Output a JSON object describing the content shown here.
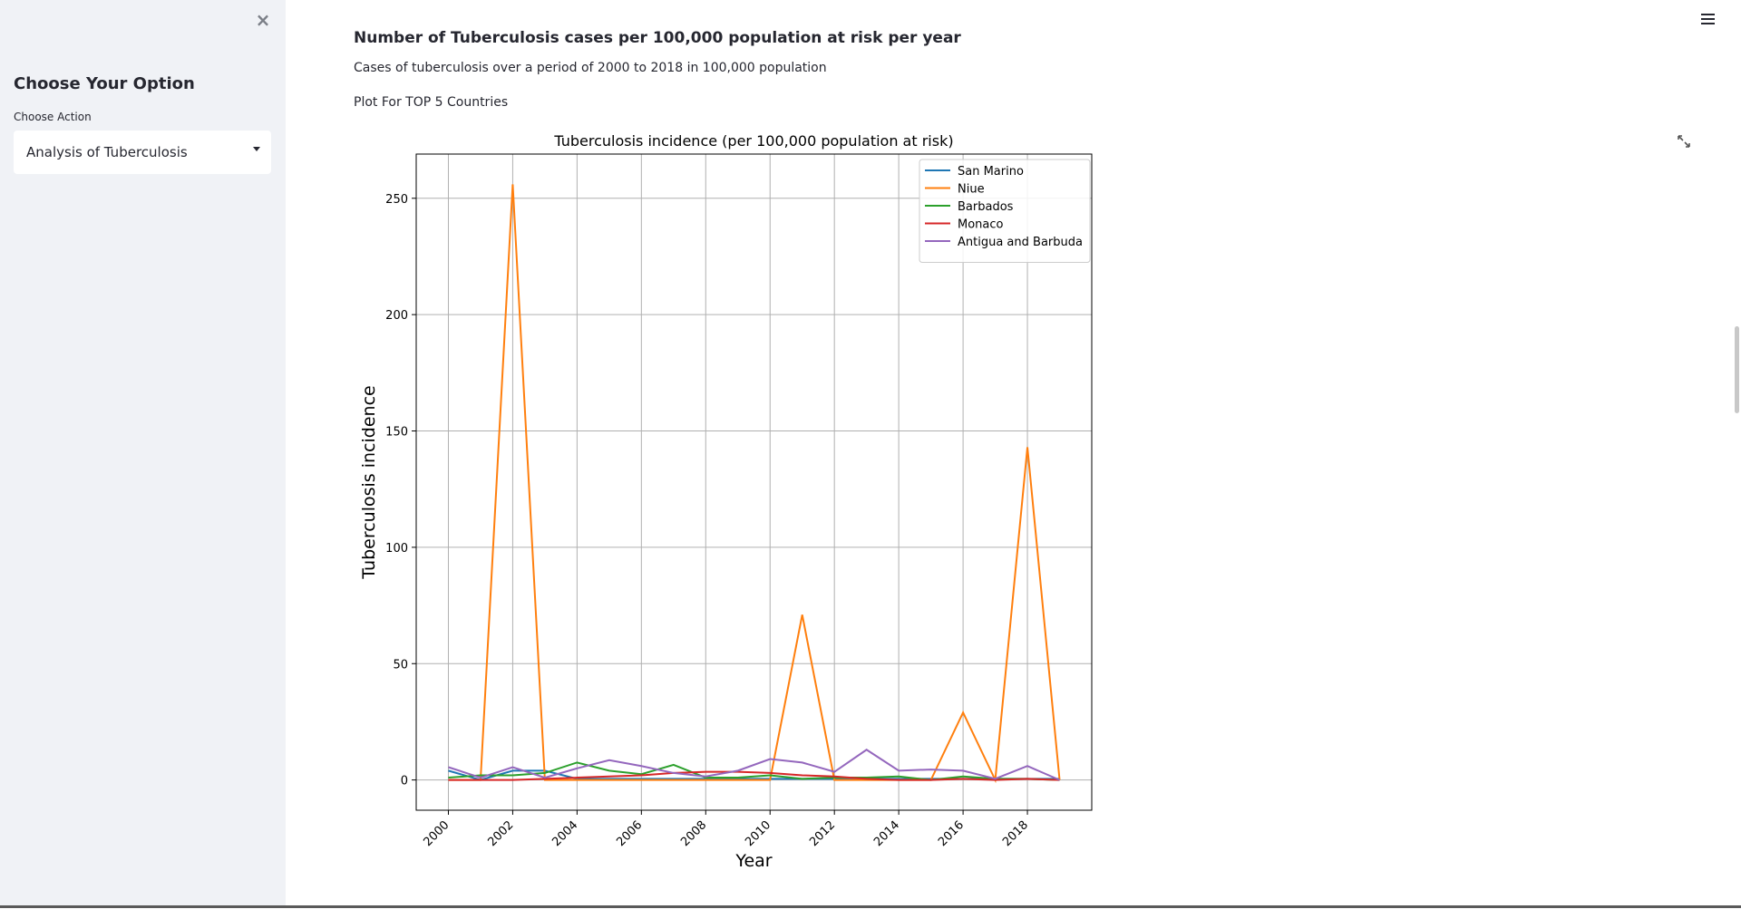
{
  "sidebar": {
    "close_glyph": "×",
    "title": "Choose Your Option",
    "select_label": "Choose Action",
    "select_value": "Analysis of Tuberculosis"
  },
  "icons": {
    "menu": "hamburger-menu-icon",
    "fullscreen": "fullscreen-icon",
    "dropdown": "chevron-down-icon"
  },
  "main": {
    "header": "Number of Tuberculosis cases per 100,000 population at risk per year",
    "subheader": "Cases of tuberculosis over a period of 2000 to 2018 in 100,000 population",
    "plot_label": "Plot For TOP 5 Countries"
  },
  "chart_data": {
    "type": "line",
    "title": "Tuberculosis incidence (per 100,000 population at risk)",
    "xlabel": "Year",
    "ylabel": "Tuberculosis incidence",
    "x": [
      2000,
      2001,
      2002,
      2003,
      2004,
      2005,
      2006,
      2007,
      2008,
      2009,
      2010,
      2011,
      2012,
      2013,
      2014,
      2015,
      2016,
      2017,
      2018,
      2019
    ],
    "xticks": [
      2000,
      2002,
      2004,
      2006,
      2008,
      2010,
      2012,
      2014,
      2016,
      2018
    ],
    "yticks": [
      0,
      50,
      100,
      150,
      200,
      250
    ],
    "xlim": [
      1999,
      2020
    ],
    "ylim": [
      -13,
      269
    ],
    "grid": true,
    "legend_position": "top-right",
    "series": [
      {
        "name": "San Marino",
        "color": "#1f77b4",
        "values": [
          4,
          0,
          4,
          4,
          0.5,
          0.5,
          0.5,
          0.5,
          0.5,
          0.5,
          0.5,
          0.5,
          0.5,
          0.5,
          0.5,
          0.5,
          0.5,
          0.5,
          0.5,
          0.5
        ]
      },
      {
        "name": "Niue",
        "color": "#ff7f0e",
        "values": [
          0,
          0,
          256,
          0,
          0,
          0,
          0,
          0,
          0,
          0,
          0,
          71,
          0,
          0,
          0,
          0,
          29,
          0,
          143,
          0
        ]
      },
      {
        "name": "Barbados",
        "color": "#2ca02c",
        "values": [
          1,
          2,
          2,
          3,
          7.5,
          4,
          2.5,
          6.5,
          1,
          1,
          2,
          0.5,
          1,
          1,
          1.5,
          0,
          1.5,
          0.5,
          0.5,
          0
        ]
      },
      {
        "name": "Monaco",
        "color": "#d62728",
        "values": [
          0,
          0,
          0,
          0.5,
          1,
          1.5,
          2,
          3,
          3.5,
          3.5,
          3,
          2,
          1.5,
          0.5,
          0,
          0,
          0.5,
          0,
          0.5,
          0
        ]
      },
      {
        "name": "Antigua and Barbuda",
        "color": "#9467bd",
        "values": [
          5.5,
          1,
          5.5,
          1,
          5,
          8.5,
          6,
          3,
          1.5,
          4,
          9,
          7.5,
          3.5,
          13,
          4,
          4.5,
          4,
          0.5,
          6,
          0
        ]
      }
    ]
  }
}
